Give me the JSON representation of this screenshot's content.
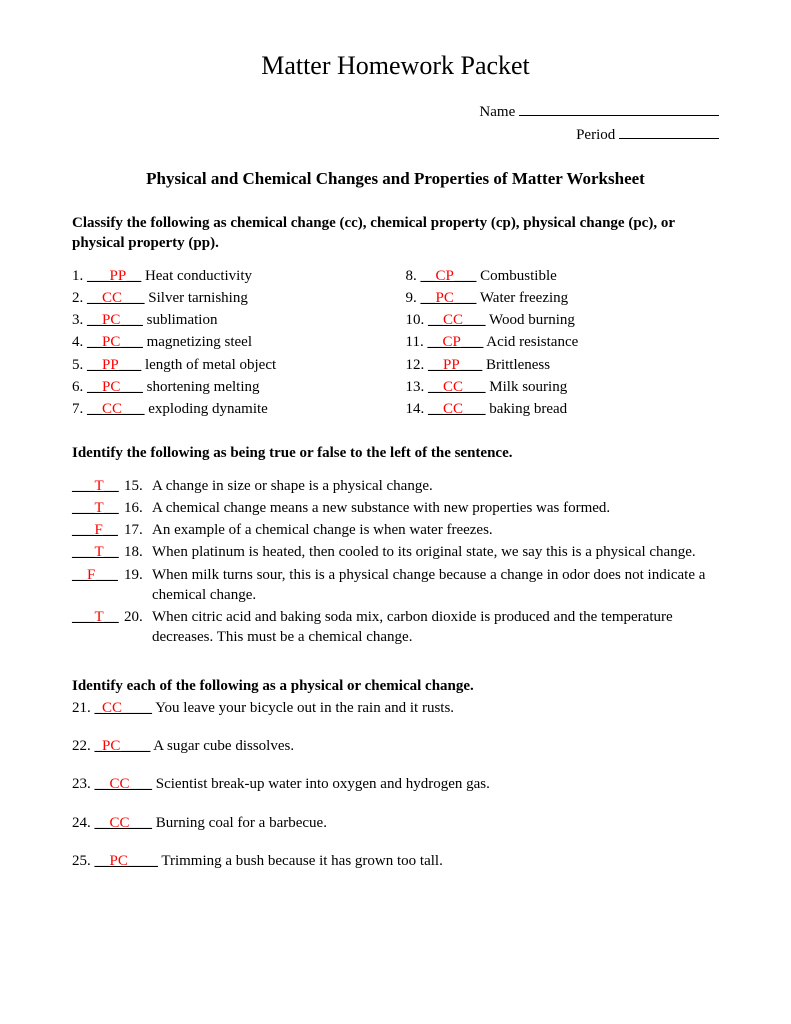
{
  "title": "Matter Homework Packet",
  "header": {
    "name_label": "Name",
    "period_label": "Period"
  },
  "subtitle": "Physical and Chemical Changes and Properties of Matter Worksheet",
  "section1": {
    "instruction": "Classify the following as chemical change (cc), chemical property (cp), physical change (pc), or physical property (pp).",
    "left": [
      {
        "n": "1.",
        "pre": "___",
        "ans": "PP",
        "post": "__",
        "text": " Heat conductivity"
      },
      {
        "n": "2.",
        "pre": "__",
        "ans": "CC",
        "post": "___",
        "text": "  Silver tarnishing"
      },
      {
        "n": "3.",
        "pre": "__",
        "ans": "PC",
        "post": "___",
        "text": " sublimation"
      },
      {
        "n": "4.",
        "pre": "__",
        "ans": "PC",
        "post": "___",
        "text": " magnetizing steel"
      },
      {
        "n": "5.",
        "pre": "__",
        "ans": "PP",
        "post": "___",
        "text": " length of metal object"
      },
      {
        "n": "6.",
        "pre": "__",
        "ans": "PC",
        "post": "___",
        "text": " shortening melting"
      },
      {
        "n": "7.",
        "pre": "__",
        "ans": "CC",
        "post": "___",
        "text": " exploding dynamite"
      }
    ],
    "right": [
      {
        "n": "8.",
        "pre": "__",
        "ans": "CP",
        "post": "___",
        "text": " Combustible"
      },
      {
        "n": "9.",
        "pre": "__",
        "ans": "PC",
        "post": "___",
        "text": " Water freezing"
      },
      {
        "n": "10.",
        "pre": "__",
        "ans": "CC",
        "post": "___",
        "text": " Wood burning"
      },
      {
        "n": "11.",
        "pre": "__",
        "ans": "CP",
        "post": "___",
        "text": " Acid resistance"
      },
      {
        "n": "12.",
        "pre": "__",
        "ans": "PP",
        "post": "___",
        "text": " Brittleness"
      },
      {
        "n": "13.",
        "pre": "__",
        "ans": "CC",
        "post": "___",
        "text": " Milk souring"
      },
      {
        "n": "14.",
        "pre": "__",
        "ans": "CC",
        "post": "___",
        "text": " baking bread"
      }
    ]
  },
  "section2": {
    "instruction": "Identify the following as being true or false to the left of the sentence.",
    "items": [
      {
        "pre": "___",
        "ans": "T",
        "post": "__",
        "n": "15.",
        "text": "A change in size or shape is a physical change."
      },
      {
        "pre": "___",
        "ans": "T",
        "post": "__",
        "n": "16.",
        "text": "A chemical change means a new substance with new properties was formed."
      },
      {
        "pre": "___",
        "ans": "F",
        "post": "__",
        "n": "17.",
        "text": "An example of a chemical change is when water freezes."
      },
      {
        "pre": "___",
        "ans": "T",
        "post": "__",
        "n": "18.",
        "text": "When platinum is heated, then cooled to its original state, we say this is a physical change."
      },
      {
        "pre": "__",
        "ans": "F",
        "post": "___",
        "n": "19.",
        "text": "When milk turns sour, this is a physical change because a change in odor does not indicate a chemical change."
      },
      {
        "pre": "___",
        "ans": "T",
        "post": "__",
        "n": "20.",
        "text": "When citric acid and baking soda mix, carbon dioxide is produced and the temperature decreases.  This must be a chemical change."
      }
    ]
  },
  "section3": {
    "instruction": "Identify each of the following as a physical or chemical change.",
    "items": [
      {
        "n": "21.",
        "pre": "_",
        "ans": "CC",
        "post": "____",
        "text": " You leave your bicycle out in the rain and it rusts."
      },
      {
        "n": "22.",
        "pre": "_",
        "ans": "PC",
        "post": "____",
        "text": " A sugar cube dissolves."
      },
      {
        "n": "23.",
        "pre": "__",
        "ans": "CC",
        "post": "___",
        "text": " Scientist break-up water into oxygen and hydrogen gas."
      },
      {
        "n": "24.",
        "pre": "__",
        "ans": "CC",
        "post": "___",
        "text": " Burning coal for a barbecue."
      },
      {
        "n": "25.",
        "pre": "__",
        "ans": "PC",
        "post": "____",
        "text": " Trimming a bush because it has grown too tall."
      }
    ]
  },
  "colors": {
    "answer": "#ff0000",
    "text": "#000000",
    "background": "#ffffff"
  }
}
